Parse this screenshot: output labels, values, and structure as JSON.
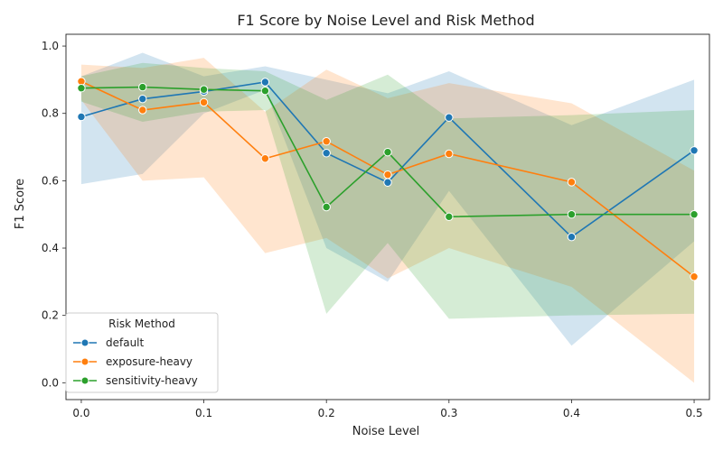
{
  "chart_data": {
    "type": "line",
    "title": "F1 Score by Noise Level and Risk Method",
    "xlabel": "Noise Level",
    "ylabel": "F1 Score",
    "x": [
      0.0,
      0.05,
      0.1,
      0.15,
      0.2,
      0.25,
      0.3,
      0.4,
      0.5
    ],
    "xlim": [
      -0.0125,
      0.5125
    ],
    "ylim": [
      -0.05,
      1.035
    ],
    "xticks": [
      "0.0",
      "0.1",
      "0.2",
      "0.3",
      "0.4",
      "0.5"
    ],
    "yticks": [
      "0.0",
      "0.2",
      "0.4",
      "0.6",
      "0.8",
      "1.0"
    ],
    "grid": false,
    "legend": {
      "title": "Risk Method",
      "placement": "lower-left"
    },
    "series": [
      {
        "name": "default",
        "color": "#1f77b4",
        "values": [
          0.79,
          0.843,
          0.865,
          0.893,
          0.682,
          0.595,
          0.788,
          0.433,
          0.69
        ],
        "ci_lower": [
          0.59,
          0.62,
          0.8,
          0.87,
          0.4,
          0.3,
          0.57,
          0.11,
          0.42
        ],
        "ci_upper": [
          0.91,
          0.98,
          0.91,
          0.94,
          0.9,
          0.86,
          0.925,
          0.765,
          0.9
        ]
      },
      {
        "name": "exposure-heavy",
        "color": "#ff7f0e",
        "values": [
          0.895,
          0.81,
          0.833,
          0.666,
          0.717,
          0.618,
          0.68,
          0.596,
          0.315
        ],
        "ci_lower": [
          0.84,
          0.6,
          0.61,
          0.385,
          0.43,
          0.31,
          0.4,
          0.285,
          0.0
        ],
        "ci_upper": [
          0.945,
          0.935,
          0.965,
          0.805,
          0.93,
          0.845,
          0.89,
          0.83,
          0.63
        ]
      },
      {
        "name": "sensitivity-heavy",
        "color": "#2ca02c",
        "values": [
          0.875,
          0.878,
          0.871,
          0.867,
          0.522,
          0.685,
          0.493,
          0.5,
          0.5
        ],
        "ci_lower": [
          0.835,
          0.775,
          0.805,
          0.81,
          0.205,
          0.415,
          0.19,
          0.2,
          0.205
        ],
        "ci_upper": [
          0.91,
          0.95,
          0.935,
          0.925,
          0.84,
          0.915,
          0.785,
          0.795,
          0.81
        ]
      }
    ]
  }
}
